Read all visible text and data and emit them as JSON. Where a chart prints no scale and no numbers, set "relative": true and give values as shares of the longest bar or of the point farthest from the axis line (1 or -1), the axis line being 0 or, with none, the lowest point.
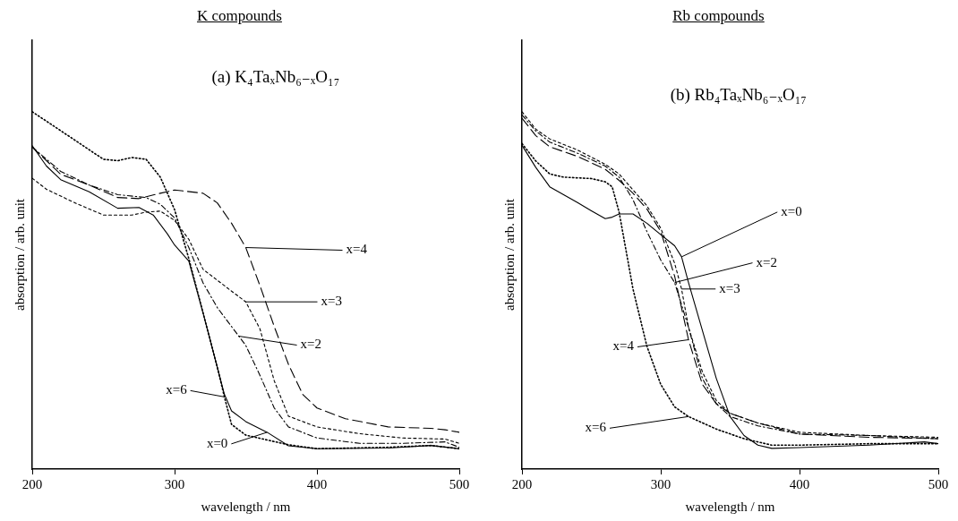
{
  "chart_data": [
    {
      "type": "line",
      "title": "K compounds",
      "subtitle": "(a) K₄TaₓNb₆₋ₓO₁₇",
      "xlabel": "wavelength / nm",
      "ylabel": "absorption / arb. unit",
      "relative": true,
      "xlim": [
        200,
        500
      ],
      "xticks": [
        200,
        300,
        400,
        500
      ],
      "grid": false,
      "legend": false,
      "marker": "none",
      "annotations": [
        {
          "text": "x=0",
          "x": 365,
          "y": 0.103
        },
        {
          "text": "x=2",
          "x": 345,
          "y": 0.372
        },
        {
          "text": "x=3",
          "x": 350,
          "y": 0.468
        },
        {
          "text": "x=4",
          "x": 350,
          "y": 0.62
        },
        {
          "text": "x=6",
          "x": 335,
          "y": 0.202
        }
      ],
      "series": [
        {
          "color": "#000000",
          "line_style": "solid",
          "x": [
            200,
            210,
            220,
            240,
            260,
            275,
            285,
            295,
            300,
            310,
            320,
            330,
            335,
            340,
            350,
            365,
            380,
            400,
            450,
            480,
            500
          ],
          "values": [
            0.905,
            0.848,
            0.81,
            0.776,
            0.73,
            0.732,
            0.711,
            0.658,
            0.627,
            0.582,
            0.437,
            0.285,
            0.209,
            0.163,
            0.133,
            0.103,
            0.065,
            0.057,
            0.059,
            0.066,
            0.057
          ]
        },
        {
          "color": "#000000",
          "line_style": "dashed",
          "x": [
            200,
            220,
            240,
            260,
            280,
            290,
            300,
            310,
            320,
            330,
            340,
            350,
            360,
            370,
            380,
            400,
            430,
            460,
            490,
            500
          ],
          "values": [
            0.901,
            0.833,
            0.795,
            0.768,
            0.76,
            0.741,
            0.703,
            0.62,
            0.521,
            0.452,
            0.399,
            0.346,
            0.262,
            0.171,
            0.118,
            0.087,
            0.072,
            0.072,
            0.076,
            0.061
          ]
        },
        {
          "color": "#000000",
          "line_style": "dashed",
          "x": [
            200,
            210,
            230,
            250,
            270,
            280,
            290,
            300,
            310,
            320,
            340,
            350,
            360,
            370,
            380,
            400,
            430,
            460,
            490,
            500
          ],
          "values": [
            0.814,
            0.783,
            0.745,
            0.711,
            0.711,
            0.719,
            0.722,
            0.696,
            0.643,
            0.559,
            0.498,
            0.468,
            0.392,
            0.247,
            0.148,
            0.118,
            0.099,
            0.087,
            0.084,
            0.072
          ]
        },
        {
          "color": "#000000",
          "line_style": "dashed",
          "x": [
            200,
            220,
            240,
            260,
            275,
            290,
            300,
            320,
            330,
            340,
            350,
            360,
            370,
            380,
            390,
            400,
            420,
            450,
            480,
            490,
            500
          ],
          "values": [
            0.901,
            0.825,
            0.795,
            0.76,
            0.757,
            0.772,
            0.781,
            0.772,
            0.745,
            0.688,
            0.62,
            0.513,
            0.399,
            0.293,
            0.209,
            0.171,
            0.141,
            0.118,
            0.114,
            0.11,
            0.103
          ]
        },
        {
          "color": "#000000",
          "line_style": "dotted",
          "x": [
            200,
            220,
            250,
            260,
            270,
            280,
            290,
            300,
            310,
            320,
            330,
            335,
            340,
            350,
            360,
            380,
            400,
            450,
            480,
            500
          ],
          "values": [
            1.0,
            0.947,
            0.867,
            0.863,
            0.872,
            0.867,
            0.817,
            0.726,
            0.589,
            0.437,
            0.285,
            0.202,
            0.125,
            0.095,
            0.086,
            0.068,
            0.057,
            0.061,
            0.066,
            0.057
          ]
        }
      ]
    },
    {
      "type": "line",
      "title": "Rb compounds",
      "subtitle": "(b) Rb₄TaₓNb₆₋ₓO₁₇",
      "xlabel": "wavelength / nm",
      "ylabel": "absorption / arb. unit",
      "relative": true,
      "xlim": [
        200,
        500
      ],
      "xticks": [
        200,
        300,
        400,
        500
      ],
      "grid": false,
      "legend": false,
      "marker": "none",
      "annotations": [
        {
          "text": "x=0",
          "x": 315,
          "y": 0.594
        },
        {
          "text": "x=2",
          "x": 310,
          "y": 0.522
        },
        {
          "text": "x=3",
          "x": 315,
          "y": 0.504
        },
        {
          "text": "x=4",
          "x": 320,
          "y": 0.362
        },
        {
          "text": "x=6",
          "x": 320,
          "y": 0.147
        }
      ],
      "series": [
        {
          "color": "#000000",
          "line_style": "solid",
          "x": [
            200,
            210,
            220,
            240,
            250,
            260,
            265,
            270,
            280,
            290,
            300,
            310,
            315,
            320,
            330,
            340,
            350,
            360,
            370,
            380,
            400,
            450,
            490,
            500
          ],
          "values": [
            0.906,
            0.844,
            0.79,
            0.746,
            0.723,
            0.701,
            0.705,
            0.714,
            0.714,
            0.688,
            0.656,
            0.625,
            0.594,
            0.522,
            0.388,
            0.254,
            0.147,
            0.094,
            0.067,
            0.058,
            0.06,
            0.067,
            0.076,
            0.071
          ]
        },
        {
          "color": "#000000",
          "line_style": "dashed",
          "x": [
            200,
            210,
            220,
            240,
            260,
            270,
            280,
            290,
            300,
            310,
            320,
            330,
            340,
            350,
            370,
            400,
            450,
            500
          ],
          "values": [
            0.991,
            0.946,
            0.915,
            0.884,
            0.848,
            0.817,
            0.754,
            0.665,
            0.585,
            0.522,
            0.397,
            0.254,
            0.183,
            0.147,
            0.121,
            0.098,
            0.094,
            0.085
          ]
        },
        {
          "color": "#000000",
          "line_style": "dashed",
          "x": [
            200,
            210,
            220,
            240,
            260,
            270,
            280,
            290,
            300,
            310,
            315,
            320,
            330,
            340,
            350,
            370,
            400,
            450,
            500
          ],
          "values": [
            1.0,
            0.951,
            0.924,
            0.893,
            0.853,
            0.826,
            0.781,
            0.737,
            0.674,
            0.576,
            0.504,
            0.397,
            0.272,
            0.192,
            0.156,
            0.129,
            0.103,
            0.094,
            0.089
          ]
        },
        {
          "color": "#000000",
          "line_style": "dashed",
          "x": [
            200,
            210,
            220,
            240,
            260,
            270,
            280,
            290,
            300,
            310,
            320,
            330,
            340,
            350,
            370,
            400,
            450,
            500
          ],
          "values": [
            0.982,
            0.933,
            0.902,
            0.875,
            0.839,
            0.808,
            0.772,
            0.728,
            0.665,
            0.54,
            0.362,
            0.237,
            0.183,
            0.156,
            0.129,
            0.098,
            0.089,
            0.085
          ]
        },
        {
          "color": "#000000",
          "line_style": "dotted",
          "x": [
            200,
            210,
            220,
            230,
            250,
            260,
            265,
            270,
            280,
            290,
            300,
            310,
            320,
            340,
            360,
            380,
            400,
            450,
            500
          ],
          "values": [
            0.911,
            0.862,
            0.826,
            0.817,
            0.813,
            0.804,
            0.79,
            0.719,
            0.504,
            0.344,
            0.237,
            0.174,
            0.147,
            0.112,
            0.085,
            0.067,
            0.067,
            0.071,
            0.071
          ]
        }
      ]
    }
  ]
}
